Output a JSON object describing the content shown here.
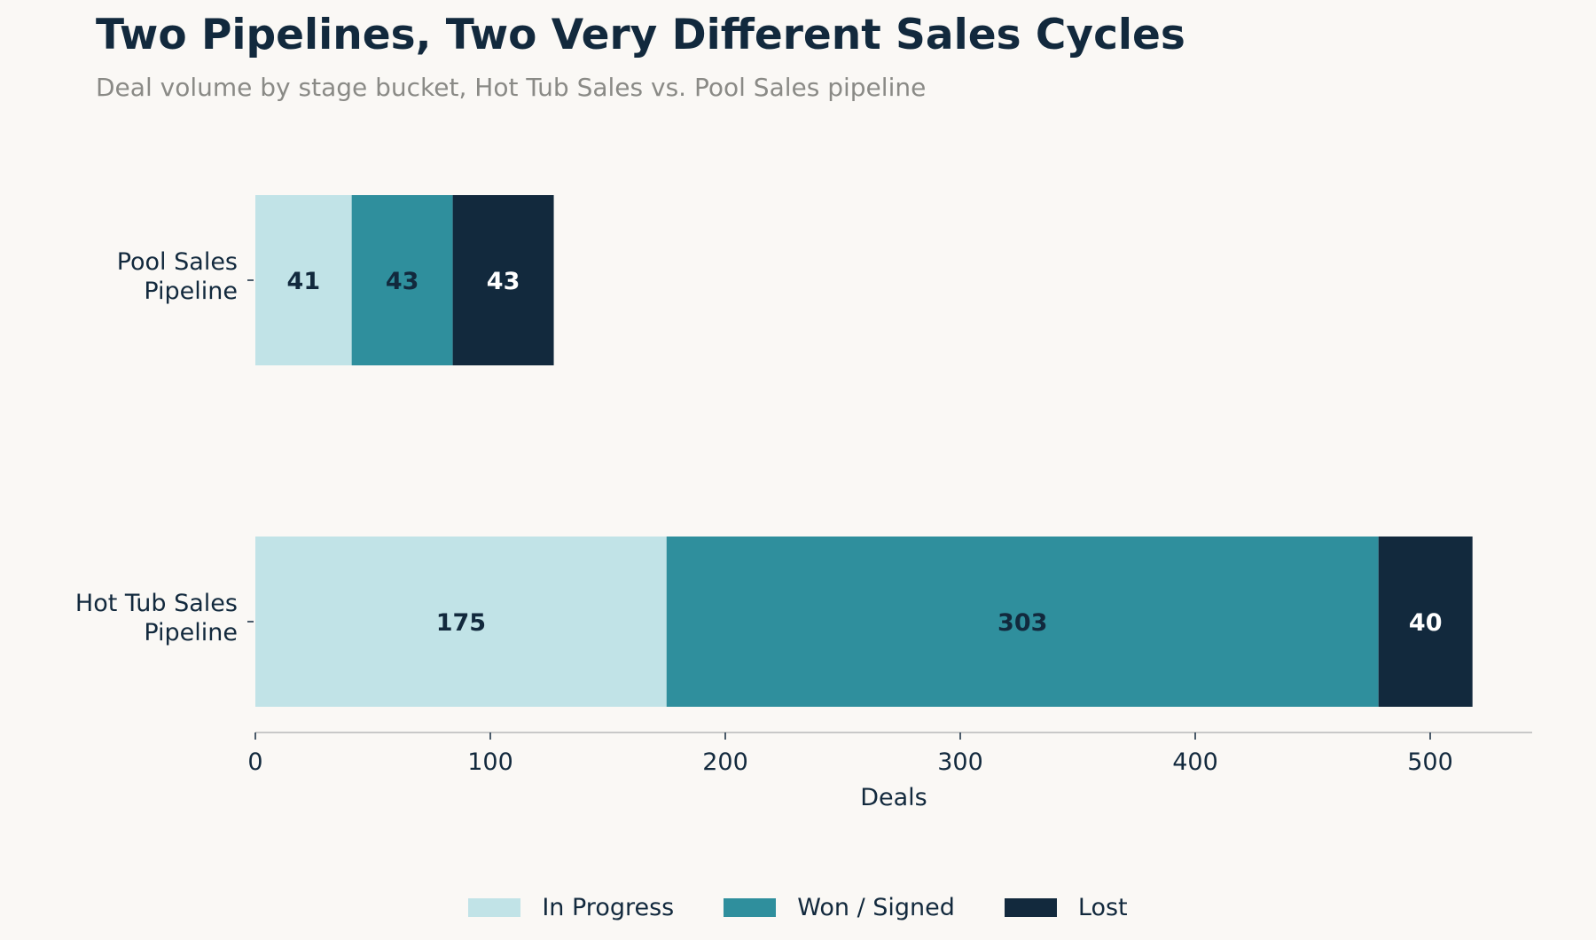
{
  "header": {
    "title": "Two Pipelines, Two Very Different Sales Cycles",
    "subtitle": "Deal volume by stage bucket, Hot Tub Sales vs. Pool Sales pipeline"
  },
  "colors": {
    "in_progress": "#c1e3e7",
    "won": "#2f8f9d",
    "lost": "#12293d",
    "background": "#faf8f5",
    "axis": "#c8c8c8"
  },
  "chart_data": {
    "type": "bar",
    "orientation": "horizontal",
    "stacked": true,
    "categories": [
      "Pool Sales\nPipeline",
      "Hot Tub Sales\nPipeline"
    ],
    "series": [
      {
        "name": "In Progress",
        "values": [
          41,
          175
        ],
        "color": "#c1e3e7",
        "label_color": "#12293d"
      },
      {
        "name": "Won / Signed",
        "values": [
          43,
          303
        ],
        "color": "#2f8f9d",
        "label_color": "#12293d"
      },
      {
        "name": "Lost",
        "values": [
          43,
          40
        ],
        "color": "#12293d",
        "label_color": "#ffffff"
      }
    ],
    "xlabel": "Deals",
    "ylabel": "",
    "xlim": [
      0,
      545
    ],
    "xticks": [
      0,
      100,
      200,
      300,
      400,
      500
    ],
    "grid": false,
    "legend_position": "bottom-center"
  }
}
